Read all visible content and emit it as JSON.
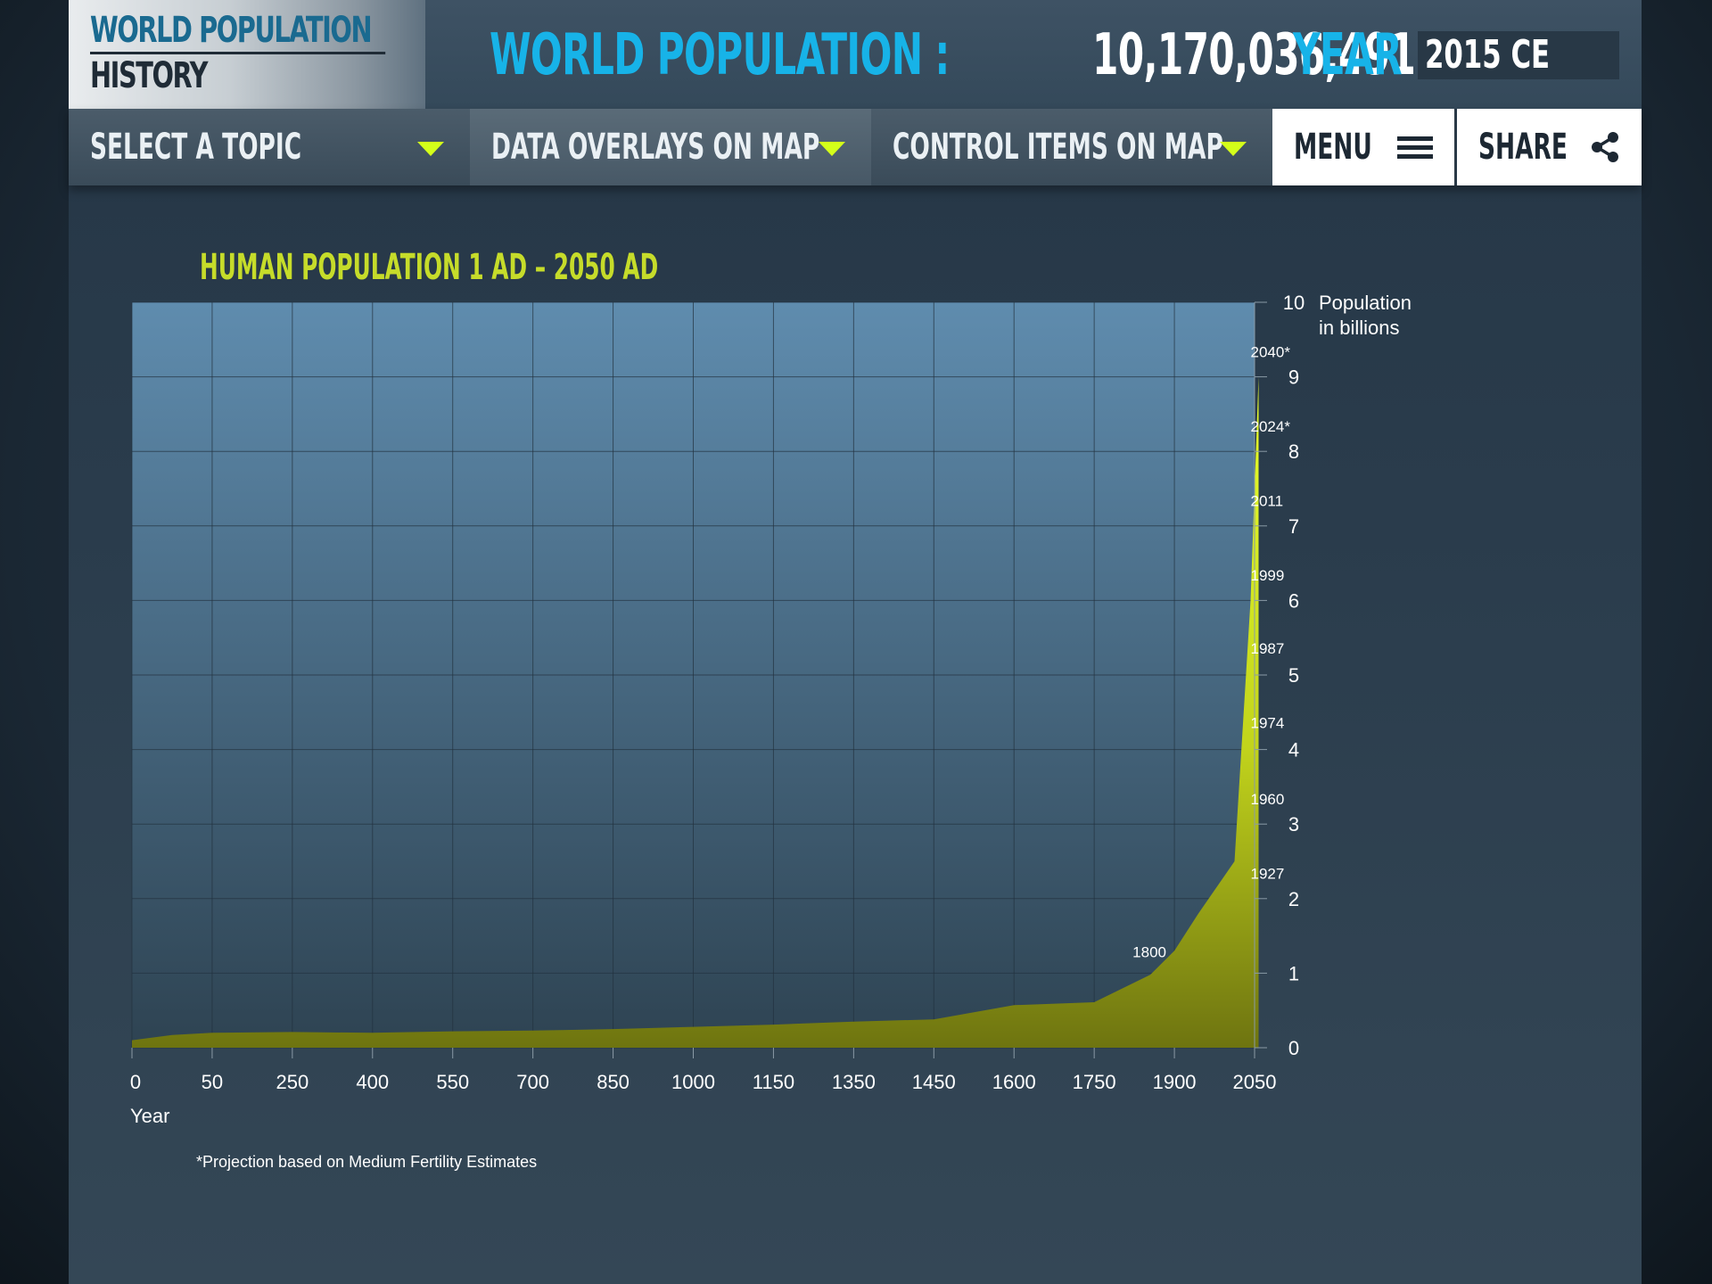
{
  "header": {
    "logo_line1": "WORLD POPULATION",
    "logo_line2": "HISTORY",
    "population_label": "WORLD POPULATION :",
    "population_value": "10,170,036,491",
    "year_label": "YEAR :",
    "year_value": "2015 CE"
  },
  "nav": {
    "topic_label": "SELECT A TOPIC",
    "overlays_label": "DATA OVERLAYS ON MAP",
    "controls_label": "CONTROL ITEMS  ON  MAP",
    "menu_label": "MENU",
    "share_label": "SHARE"
  },
  "colors": {
    "accent_cyan": "#17b3e8",
    "accent_lime": "#d4ff1a",
    "chart_title": "#c6dc2a"
  },
  "icons": {
    "dropdown": "triangle-down-icon",
    "menu": "hamburger-icon",
    "share": "share-icon"
  },
  "chart_data": {
    "type": "area",
    "title": "HUMAN POPULATION 1 AD – 2050 AD",
    "xlabel": "Year",
    "ylabel": "Population\nin billions",
    "ylabel_lines": [
      "Population",
      "in billions"
    ],
    "x_tick_labels": [
      "0",
      "50",
      "250",
      "400",
      "550",
      "700",
      "850",
      "1000",
      "1150",
      "1350",
      "1450",
      "1600",
      "1750",
      "1900",
      "2050"
    ],
    "y_ticks": [
      0,
      1,
      2,
      3,
      4,
      5,
      6,
      7,
      8,
      9,
      10
    ],
    "ylim": [
      0,
      10
    ],
    "grid": true,
    "series": [
      {
        "x": [
          0,
          0.5,
          1,
          2,
          3,
          4,
          5,
          6,
          7,
          8,
          9,
          10,
          11,
          12,
          12.7,
          13,
          13.3,
          13.75,
          13.95,
          14.05
        ],
        "values": [
          0.1,
          0.17,
          0.2,
          0.21,
          0.2,
          0.22,
          0.23,
          0.25,
          0.28,
          0.31,
          0.35,
          0.38,
          0.57,
          0.61,
          0.98,
          1.3,
          1.8,
          2.5,
          6.0,
          9.0
        ]
      }
    ],
    "annotations": [
      "2040*",
      "2024*",
      "2011",
      "1999",
      "1987",
      "1974",
      "1960",
      "1927",
      "1800"
    ],
    "footnote": "*Projection based on Medium Fertility Estimates"
  }
}
